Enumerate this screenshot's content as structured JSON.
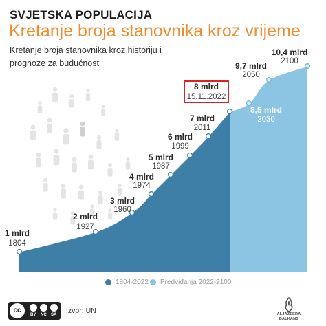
{
  "header": {
    "kicker": "SVJETSKA POPULACIJA",
    "title": "Kretanje broja stanovnika kroz vrijeme",
    "subtitle": "Kretanje broja stanovnika kroz historiju i prognoze za budućnost"
  },
  "chart_data": {
    "type": "area",
    "title": "",
    "xlabel": "",
    "ylabel": "",
    "grid": false,
    "series": [
      {
        "name": "1804-2022",
        "color": "#3d7fa6",
        "points": [
          {
            "year": 1804,
            "value": 1,
            "value_label": "1 mlrd",
            "year_label": "1804"
          },
          {
            "year": 1927,
            "value": 2,
            "value_label": "2 mlrd",
            "year_label": "1927"
          },
          {
            "year": 1960,
            "value": 3,
            "value_label": "3 mlrd",
            "year_label": "1960"
          },
          {
            "year": 1974,
            "value": 4,
            "value_label": "4 mlrd",
            "year_label": "1974"
          },
          {
            "year": 1987,
            "value": 5,
            "value_label": "5 mlrd",
            "year_label": "1987"
          },
          {
            "year": 1999,
            "value": 6,
            "value_label": "6 mlrd",
            "year_label": "1999"
          },
          {
            "year": 2011,
            "value": 7,
            "value_label": "7 mlrd",
            "year_label": "2011"
          },
          {
            "year": 2022,
            "value": 8,
            "value_label": "8 mlrd",
            "year_label": "15.11.2022",
            "highlight": true
          }
        ]
      },
      {
        "name": "Predviđanja 2022-2100",
        "color": "#8cc4e3",
        "points": [
          {
            "year": 2030,
            "value": 8.5,
            "value_label": "8,5 mlrd",
            "year_label": "2030"
          },
          {
            "year": 2050,
            "value": 9.7,
            "value_label": "9,7 mlrd",
            "year_label": "2050"
          },
          {
            "year": 2100,
            "value": 10.4,
            "value_label": "10,4 mlrd",
            "year_label": "2100"
          }
        ]
      }
    ],
    "highlight_color": "#e02020"
  },
  "footer": {
    "license": "cc",
    "license_parts": [
      "BY",
      "NC",
      "SA"
    ],
    "source": "Izvor: UN",
    "logo_lines": [
      "ALJAZEERA",
      "BALKANS"
    ]
  }
}
